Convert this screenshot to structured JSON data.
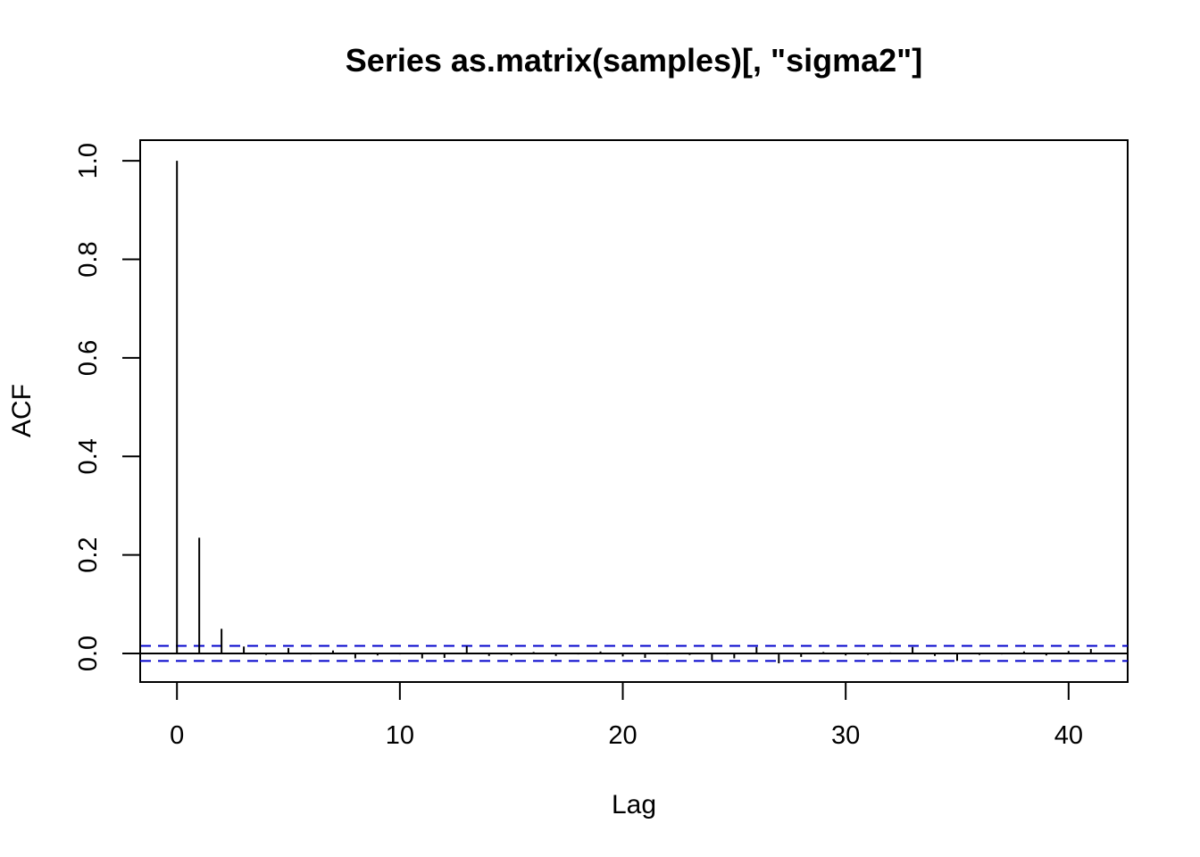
{
  "chart_data": {
    "type": "bar",
    "subtype": "acf-spikes",
    "title": "Series  as.matrix(samples)[, \"sigma2\"]",
    "xlabel": "Lag",
    "ylabel": "ACF",
    "xlim": [
      -1.65,
      42.65
    ],
    "ylim": [
      -0.058,
      1.042
    ],
    "x_ticks": [
      0,
      10,
      20,
      30,
      40
    ],
    "y_ticks": [
      0.0,
      0.2,
      0.4,
      0.6,
      0.8,
      1.0
    ],
    "y_tick_labels": [
      "0.0",
      "0.2",
      "0.4",
      "0.6",
      "0.8",
      "1.0"
    ],
    "lags": [
      0,
      1,
      2,
      3,
      4,
      5,
      6,
      7,
      8,
      9,
      10,
      11,
      12,
      13,
      14,
      15,
      16,
      17,
      18,
      19,
      20,
      21,
      22,
      23,
      24,
      25,
      26,
      27,
      28,
      29,
      30,
      31,
      32,
      33,
      34,
      35,
      36,
      37,
      38,
      39,
      40,
      41
    ],
    "acf": [
      1.0,
      0.235,
      0.05,
      0.014,
      -0.003,
      0.011,
      -0.002,
      0.006,
      -0.01,
      -0.004,
      -0.002,
      -0.01,
      -0.009,
      0.015,
      -0.005,
      -0.004,
      0.003,
      -0.005,
      -0.002,
      0.004,
      -0.006,
      -0.009,
      -0.002,
      -0.003,
      -0.014,
      -0.01,
      0.013,
      -0.02,
      -0.007,
      0.003,
      -0.004,
      -0.003,
      0.002,
      0.013,
      -0.005,
      -0.015,
      -0.003,
      -0.002,
      0.004,
      -0.004,
      0.005,
      0.009
    ],
    "confidence_bound": 0.0153,
    "colors": {
      "spike": "#000000",
      "ci": "#0000cc",
      "zero": "#000000"
    },
    "grid": false
  }
}
